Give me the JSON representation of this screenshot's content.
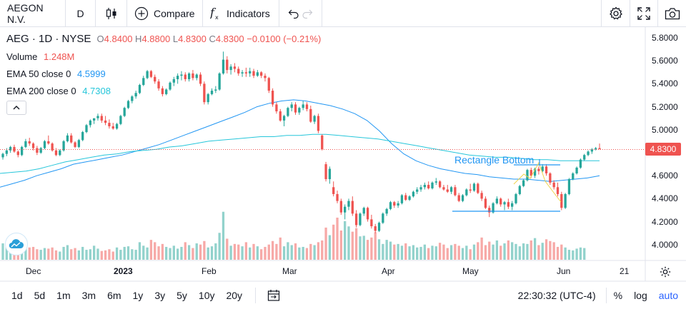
{
  "toolbar": {
    "symbol": "AEGON N.V.",
    "interval": "D",
    "compare_label": "Compare",
    "indicators_label": "Indicators"
  },
  "legend": {
    "ticker": "AEG · 1D · NYSE",
    "open_label": "O",
    "open": "4.8400",
    "high_label": "H",
    "high": "4.8800",
    "low_label": "L",
    "low": "4.8300",
    "close_label": "C",
    "close": "4.8300",
    "change": "−0.0100 (−0.21%)",
    "volume_label": "Volume",
    "volume": "1.248M",
    "ema50_label": "EMA 50 close 0",
    "ema50_value": "4.5999",
    "ema200_label": "EMA 200 close 0",
    "ema200_value": "4.7308"
  },
  "price_axis": [
    "5.8000",
    "5.6000",
    "5.4000",
    "5.2000",
    "5.0000",
    "4.8000",
    "4.6000",
    "4.4000",
    "4.2000",
    "4.0000"
  ],
  "current_price": "4.8300",
  "time_axis": [
    {
      "label": "Dec",
      "bold": false
    },
    {
      "label": "2023",
      "bold": true
    },
    {
      "label": "Feb",
      "bold": false
    },
    {
      "label": "Mar",
      "bold": false
    },
    {
      "label": "Apr",
      "bold": false
    },
    {
      "label": "May",
      "bold": false
    },
    {
      "label": "Jun",
      "bold": false
    },
    {
      "label": "21",
      "bold": false
    }
  ],
  "annotation": "Rectangle Bottom",
  "ranges": [
    "1d",
    "5d",
    "1m",
    "3m",
    "6m",
    "1y",
    "3y",
    "5y",
    "10y",
    "20y"
  ],
  "clock": "22:30:32 (UTC-4)",
  "scale_options": {
    "percent": "%",
    "log": "log",
    "auto": "auto"
  },
  "colors": {
    "up": "#26a69a",
    "down": "#ef5350",
    "ema50": "#2196f3",
    "ema200": "#26c6da",
    "accent": "#2962ff"
  },
  "chart_data": {
    "type": "candlestick",
    "ylim": [
      3.9,
      5.9
    ],
    "candles": [
      [
        4.76,
        4.8,
        4.74,
        4.79
      ],
      [
        4.79,
        4.84,
        4.77,
        4.82
      ],
      [
        4.82,
        4.86,
        4.8,
        4.85
      ],
      [
        4.85,
        4.87,
        4.8,
        4.81
      ],
      [
        4.81,
        4.82,
        4.76,
        4.78
      ],
      [
        4.78,
        4.86,
        4.77,
        4.85
      ],
      [
        4.85,
        4.92,
        4.84,
        4.9
      ],
      [
        4.9,
        4.93,
        4.86,
        4.88
      ],
      [
        4.88,
        4.89,
        4.82,
        4.84
      ],
      [
        4.84,
        4.86,
        4.78,
        4.8
      ],
      [
        4.8,
        4.85,
        4.79,
        4.84
      ],
      [
        4.84,
        4.91,
        4.83,
        4.9
      ],
      [
        4.9,
        4.95,
        4.87,
        4.88
      ],
      [
        4.88,
        4.89,
        4.81,
        4.82
      ],
      [
        4.82,
        4.84,
        4.77,
        4.78
      ],
      [
        4.78,
        4.83,
        4.77,
        4.82
      ],
      [
        4.82,
        4.91,
        4.81,
        4.9
      ],
      [
        4.9,
        4.97,
        4.89,
        4.95
      ],
      [
        4.95,
        4.97,
        4.88,
        4.89
      ],
      [
        4.89,
        4.9,
        4.84,
        4.85
      ],
      [
        4.85,
        4.92,
        4.84,
        4.91
      ],
      [
        4.91,
        4.99,
        4.9,
        4.98
      ],
      [
        4.98,
        5.05,
        4.97,
        5.04
      ],
      [
        5.04,
        5.09,
        5.02,
        5.08
      ],
      [
        5.08,
        5.1,
        5.05,
        5.1
      ],
      [
        5.1,
        5.14,
        5.08,
        5.12
      ],
      [
        5.12,
        5.14,
        5.06,
        5.08
      ],
      [
        5.08,
        5.12,
        5.04,
        5.06
      ],
      [
        5.06,
        5.09,
        5.01,
        5.03
      ],
      [
        5.03,
        5.06,
        5.0,
        5.01
      ],
      [
        5.01,
        5.06,
        5.0,
        5.05
      ],
      [
        5.05,
        5.13,
        5.04,
        5.12
      ],
      [
        5.12,
        5.2,
        5.11,
        5.19
      ],
      [
        5.19,
        5.26,
        5.18,
        5.25
      ],
      [
        5.25,
        5.3,
        5.23,
        5.29
      ],
      [
        5.29,
        5.34,
        5.27,
        5.32
      ],
      [
        5.32,
        5.4,
        5.31,
        5.39
      ],
      [
        5.39,
        5.47,
        5.38,
        5.45
      ],
      [
        5.45,
        5.52,
        5.44,
        5.51
      ],
      [
        5.51,
        5.52,
        5.45,
        5.46
      ],
      [
        5.46,
        5.48,
        5.4,
        5.42
      ],
      [
        5.42,
        5.44,
        5.34,
        5.36
      ],
      [
        5.36,
        5.38,
        5.29,
        5.31
      ],
      [
        5.31,
        5.36,
        5.3,
        5.35
      ],
      [
        5.35,
        5.42,
        5.34,
        5.41
      ],
      [
        5.41,
        5.46,
        5.38,
        5.44
      ],
      [
        5.44,
        5.49,
        5.4,
        5.47
      ],
      [
        5.47,
        5.51,
        5.43,
        5.48
      ],
      [
        5.48,
        5.5,
        5.42,
        5.44
      ],
      [
        5.44,
        5.5,
        5.42,
        5.49
      ],
      [
        5.49,
        5.52,
        5.43,
        5.45
      ],
      [
        5.45,
        5.49,
        5.43,
        5.48
      ],
      [
        5.48,
        5.5,
        5.38,
        5.4
      ],
      [
        5.4,
        5.42,
        5.22,
        5.24
      ],
      [
        5.24,
        5.32,
        5.22,
        5.31
      ],
      [
        5.31,
        5.36,
        5.3,
        5.34
      ],
      [
        5.34,
        5.38,
        5.32,
        5.35
      ],
      [
        5.35,
        5.5,
        5.34,
        5.49
      ],
      [
        5.49,
        5.68,
        5.48,
        5.61
      ],
      [
        5.61,
        5.64,
        5.49,
        5.52
      ],
      [
        5.52,
        5.57,
        5.48,
        5.55
      ],
      [
        5.55,
        5.58,
        5.5,
        5.53
      ],
      [
        5.53,
        5.55,
        5.47,
        5.49
      ],
      [
        5.49,
        5.52,
        5.46,
        5.5
      ],
      [
        5.5,
        5.54,
        5.46,
        5.49
      ],
      [
        5.49,
        5.54,
        5.46,
        5.51
      ],
      [
        5.51,
        5.53,
        5.45,
        5.47
      ],
      [
        5.47,
        5.52,
        5.46,
        5.5
      ],
      [
        5.5,
        5.51,
        5.45,
        5.47
      ],
      [
        5.47,
        5.49,
        5.42,
        5.45
      ],
      [
        5.45,
        5.46,
        5.32,
        5.34
      ],
      [
        5.34,
        5.36,
        5.2,
        5.22
      ],
      [
        5.22,
        5.24,
        5.14,
        5.16
      ],
      [
        5.16,
        5.18,
        5.07,
        5.08
      ],
      [
        5.08,
        5.13,
        5.03,
        5.12
      ],
      [
        5.12,
        5.2,
        5.11,
        5.19
      ],
      [
        5.19,
        5.24,
        5.16,
        5.22
      ],
      [
        5.22,
        5.24,
        5.13,
        5.15
      ],
      [
        5.15,
        5.2,
        5.13,
        5.19
      ],
      [
        5.19,
        5.25,
        5.17,
        5.22
      ],
      [
        5.22,
        5.24,
        5.16,
        5.18
      ],
      [
        5.18,
        5.21,
        5.06,
        5.07
      ],
      [
        5.07,
        5.13,
        5.05,
        5.12
      ],
      [
        5.12,
        5.14,
        4.97,
        4.99
      ],
      [
        4.95,
        4.96,
        4.82,
        4.83
      ],
      [
        4.7,
        4.72,
        4.55,
        4.57
      ],
      [
        4.57,
        4.68,
        4.53,
        4.66
      ],
      [
        4.5,
        4.55,
        4.42,
        4.44
      ],
      [
        4.44,
        4.47,
        4.36,
        4.38
      ],
      [
        4.38,
        4.4,
        4.26,
        4.28
      ],
      [
        4.28,
        4.35,
        4.22,
        4.33
      ],
      [
        4.33,
        4.4,
        4.3,
        4.38
      ],
      [
        4.38,
        4.42,
        4.25,
        4.27
      ],
      [
        4.27,
        4.3,
        4.15,
        4.17
      ],
      [
        4.17,
        4.28,
        4.16,
        4.27
      ],
      [
        4.27,
        4.33,
        4.25,
        4.32
      ],
      [
        4.32,
        4.33,
        4.2,
        4.22
      ],
      [
        4.22,
        4.26,
        4.14,
        4.16
      ],
      [
        4.16,
        4.18,
        4.1,
        4.12
      ],
      [
        4.12,
        4.2,
        4.11,
        4.19
      ],
      [
        4.19,
        4.28,
        4.18,
        4.27
      ],
      [
        4.27,
        4.32,
        4.25,
        4.31
      ],
      [
        4.31,
        4.38,
        4.3,
        4.37
      ],
      [
        4.37,
        4.38,
        4.32,
        4.34
      ],
      [
        4.34,
        4.38,
        4.32,
        4.36
      ],
      [
        4.36,
        4.44,
        4.35,
        4.43
      ],
      [
        4.43,
        4.45,
        4.38,
        4.39
      ],
      [
        4.39,
        4.43,
        4.38,
        4.42
      ],
      [
        4.42,
        4.47,
        4.41,
        4.46
      ],
      [
        4.46,
        4.5,
        4.44,
        4.48
      ],
      [
        4.48,
        4.52,
        4.46,
        4.5
      ],
      [
        4.5,
        4.54,
        4.48,
        4.52
      ],
      [
        4.52,
        4.55,
        4.48,
        4.49
      ],
      [
        4.49,
        4.55,
        4.48,
        4.54
      ],
      [
        4.54,
        4.58,
        4.52,
        4.55
      ],
      [
        4.55,
        4.56,
        4.49,
        4.5
      ],
      [
        4.5,
        4.52,
        4.47,
        4.48
      ],
      [
        4.48,
        4.52,
        4.45,
        4.46
      ],
      [
        4.46,
        4.51,
        4.44,
        4.5
      ],
      [
        4.5,
        4.52,
        4.42,
        4.43
      ],
      [
        4.43,
        4.45,
        4.37,
        4.38
      ],
      [
        4.38,
        4.44,
        4.37,
        4.43
      ],
      [
        4.43,
        4.49,
        4.42,
        4.48
      ],
      [
        4.48,
        4.53,
        4.45,
        4.47
      ],
      [
        4.47,
        4.54,
        4.46,
        4.53
      ],
      [
        4.53,
        4.54,
        4.44,
        4.45
      ],
      [
        4.45,
        4.47,
        4.38,
        4.4
      ],
      [
        4.4,
        4.42,
        4.31,
        4.32
      ],
      [
        4.32,
        4.34,
        4.24,
        4.28
      ],
      [
        4.28,
        4.37,
        4.27,
        4.36
      ],
      [
        4.36,
        4.42,
        4.35,
        4.4
      ],
      [
        4.4,
        4.41,
        4.33,
        4.35
      ],
      [
        4.35,
        4.38,
        4.3,
        4.37
      ],
      [
        4.37,
        4.4,
        4.31,
        4.33
      ],
      [
        4.33,
        4.38,
        4.3,
        4.36
      ],
      [
        4.36,
        4.45,
        4.35,
        4.44
      ],
      [
        4.44,
        4.52,
        4.43,
        4.51
      ],
      [
        4.51,
        4.57,
        4.5,
        4.56
      ],
      [
        4.56,
        4.66,
        4.55,
        4.65
      ],
      [
        4.65,
        4.67,
        4.58,
        4.6
      ],
      [
        4.6,
        4.67,
        4.58,
        4.66
      ],
      [
        4.66,
        4.68,
        4.61,
        4.64
      ],
      [
        4.64,
        4.7,
        4.63,
        4.68
      ],
      [
        4.68,
        4.7,
        4.6,
        4.62
      ],
      [
        4.62,
        4.63,
        4.52,
        4.54
      ],
      [
        4.54,
        4.56,
        4.48,
        4.5
      ],
      [
        4.5,
        4.54,
        4.42,
        4.44
      ],
      [
        4.44,
        4.46,
        4.3,
        4.32
      ],
      [
        4.32,
        4.45,
        4.31,
        4.44
      ],
      [
        4.44,
        4.58,
        4.43,
        4.57
      ],
      [
        4.57,
        4.63,
        4.56,
        4.62
      ],
      [
        4.62,
        4.68,
        4.61,
        4.67
      ],
      [
        4.67,
        4.75,
        4.66,
        4.74
      ],
      [
        4.74,
        4.79,
        4.73,
        4.78
      ],
      [
        4.78,
        4.82,
        4.77,
        4.81
      ],
      [
        4.81,
        4.84,
        4.79,
        4.83
      ],
      [
        4.83,
        4.85,
        4.82,
        4.84
      ],
      [
        4.84,
        4.88,
        4.83,
        4.83
      ]
    ],
    "volume_relative": [
      0.28,
      0.23,
      0.25,
      0.27,
      0.19,
      0.24,
      0.2,
      0.21,
      0.22,
      0.18,
      0.17,
      0.2,
      0.19,
      0.21,
      0.16,
      0.14,
      0.22,
      0.25,
      0.18,
      0.2,
      0.16,
      0.22,
      0.17,
      0.18,
      0.24,
      0.19,
      0.15,
      0.16,
      0.18,
      0.14,
      0.21,
      0.17,
      0.22,
      0.23,
      0.18,
      0.17,
      0.3,
      0.24,
      0.21,
      0.34,
      0.3,
      0.23,
      0.27,
      0.22,
      0.2,
      0.24,
      0.19,
      0.22,
      0.3,
      0.25,
      0.2,
      0.28,
      0.26,
      0.32,
      0.21,
      0.23,
      0.28,
      0.46,
      0.82,
      0.36,
      0.24,
      0.27,
      0.26,
      0.23,
      0.3,
      0.21,
      0.27,
      0.23,
      0.18,
      0.22,
      0.26,
      0.32,
      0.27,
      0.38,
      0.23,
      0.3,
      0.25,
      0.28,
      0.21,
      0.22,
      0.2,
      0.27,
      0.25,
      0.3,
      0.33,
      0.55,
      0.42,
      0.6,
      0.72,
      0.5,
      0.66,
      0.57,
      0.48,
      0.54,
      0.4,
      0.41,
      0.34,
      0.38,
      0.47,
      0.35,
      0.27,
      0.34,
      0.31,
      0.26,
      0.27,
      0.24,
      0.28,
      0.23,
      0.25,
      0.21,
      0.22,
      0.26,
      0.2,
      0.24,
      0.23,
      0.29,
      0.26,
      0.2,
      0.25,
      0.27,
      0.24,
      0.2,
      0.24,
      0.18,
      0.26,
      0.3,
      0.38,
      0.25,
      0.31,
      0.26,
      0.33,
      0.24,
      0.28,
      0.33,
      0.3,
      0.27,
      0.23,
      0.28,
      0.27,
      0.33,
      0.37,
      0.25,
      0.29,
      0.35,
      0.32,
      0.3,
      0.22,
      0.26,
      0.21,
      0.17,
      0.16,
      0.19,
      0.21,
      0.2
    ],
    "ema50": [
      4.5,
      4.53,
      4.56,
      4.6,
      4.63,
      4.66,
      4.7,
      4.72,
      4.74,
      4.76,
      4.78,
      4.81,
      4.84,
      4.87,
      4.91,
      4.95,
      4.99,
      5.03,
      5.07,
      5.11,
      5.15,
      5.2,
      5.23,
      5.25,
      5.26,
      5.25,
      5.23,
      5.21,
      5.18,
      5.14,
      5.08,
      4.99,
      4.88,
      4.79,
      4.73,
      4.69,
      4.66,
      4.64,
      4.62,
      4.61,
      4.59,
      4.58,
      4.57,
      4.57,
      4.56,
      4.55,
      4.56,
      4.57,
      4.58,
      4.6
    ],
    "ema200": [
      4.62,
      4.63,
      4.64,
      4.66,
      4.69,
      4.72,
      4.74,
      4.76,
      4.78,
      4.79,
      4.81,
      4.82,
      4.83,
      4.85,
      4.86,
      4.88,
      4.9,
      4.91,
      4.92,
      4.93,
      4.94,
      4.94,
      4.95,
      4.95,
      4.96,
      4.96,
      4.95,
      4.94,
      4.93,
      4.92,
      4.9,
      4.88,
      4.86,
      4.84,
      4.82,
      4.8,
      4.78,
      4.77,
      4.76,
      4.76,
      4.75,
      4.74,
      4.74,
      4.73,
      4.73,
      4.73,
      4.73
    ],
    "rectangle": {
      "top": 4.69,
      "bottom": 4.29
    }
  }
}
